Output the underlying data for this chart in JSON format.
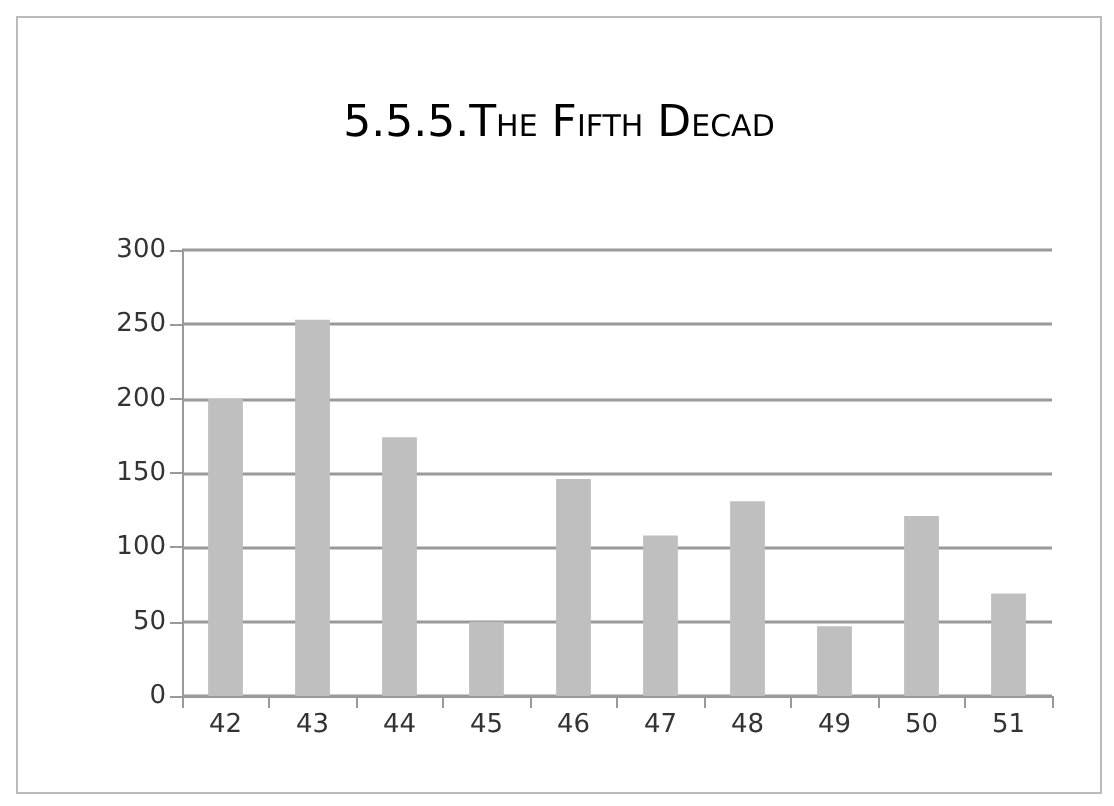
{
  "chart_data": {
    "type": "bar",
    "title": "5.5.5.The Fifth Decad",
    "categories": [
      "42",
      "43",
      "44",
      "45",
      "46",
      "47",
      "48",
      "49",
      "50",
      "51"
    ],
    "values": [
      200,
      253,
      174,
      50,
      146,
      108,
      131,
      47,
      121,
      69
    ],
    "color": "#bfbfbf",
    "ylim": [
      0,
      300
    ],
    "yticks": [
      0,
      50,
      100,
      150,
      200,
      250,
      300
    ],
    "grid": "y"
  }
}
